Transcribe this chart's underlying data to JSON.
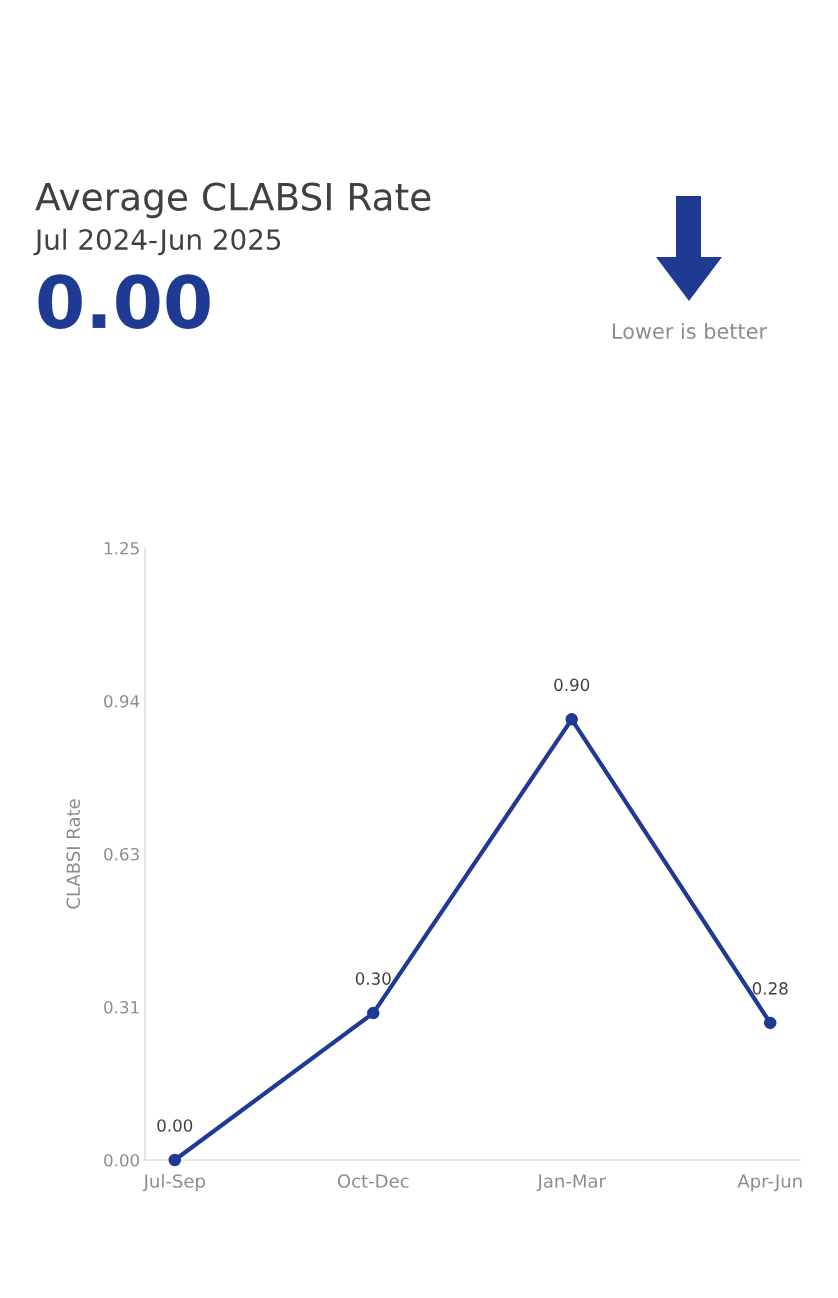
{
  "chart_data": {
    "type": "line",
    "title": "Average CLABSI Rate",
    "subtitle": "Jul 2024-Jun 2025",
    "ylabel": "CLABSI Rate",
    "annotations": [
      "0.00",
      "Lower is better"
    ],
    "categories": [
      "Jul-Sep",
      "Oct-Dec",
      "Jan-Mar",
      "Apr-Jun"
    ],
    "series": [
      {
        "color": "#1f3a93",
        "values": [
          0,
          0.3,
          0.9,
          0.28
        ],
        "value_labels": [
          "0.00",
          "0.30",
          "0.90",
          "0.28"
        ]
      }
    ],
    "ylim": [
      0,
      1.25
    ],
    "yticks": [
      {
        "value": 0,
        "label": "0.00"
      },
      {
        "value": 0.3125,
        "label": "0.31"
      },
      {
        "value": 0.625,
        "label": "0.63"
      },
      {
        "value": 0.9375,
        "label": "0.94"
      },
      1.25
    ],
    "grid": false,
    "legend": false,
    "marker": "circle",
    "line_style": "solid"
  }
}
